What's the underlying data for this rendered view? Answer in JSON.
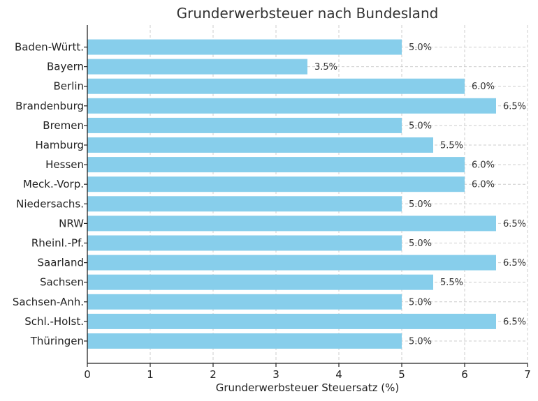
{
  "chart_data": {
    "type": "bar",
    "orientation": "horizontal",
    "title": "Grunderwerbsteuer nach Bundesland",
    "xlabel": "Grunderwerbsteuer Steuersatz (%)",
    "ylabel": "",
    "xlim": [
      0,
      7
    ],
    "xticks": [
      0,
      1,
      2,
      3,
      4,
      5,
      6,
      7
    ],
    "grid": true,
    "bar_color": "#87ceeb",
    "categories": [
      "Baden-Württ.",
      "Bayern",
      "Berlin",
      "Brandenburg",
      "Bremen",
      "Hamburg",
      "Hessen",
      "Meck.-Vorp.",
      "Niedersachs.",
      "NRW",
      "Rheinl.-Pf.",
      "Saarland",
      "Sachsen",
      "Sachsen-Anh.",
      "Schl.-Holst.",
      "Thüringen"
    ],
    "values": [
      5.0,
      3.5,
      6.0,
      6.5,
      5.0,
      5.5,
      6.0,
      6.0,
      5.0,
      6.5,
      5.0,
      6.5,
      5.5,
      5.0,
      6.5,
      5.0
    ],
    "value_labels": [
      "5.0%",
      "3.5%",
      "6.0%",
      "6.5%",
      "5.0%",
      "5.5%",
      "6.0%",
      "6.0%",
      "5.0%",
      "6.5%",
      "5.0%",
      "6.5%",
      "5.5%",
      "5.0%",
      "6.5%",
      "5.0%"
    ]
  }
}
